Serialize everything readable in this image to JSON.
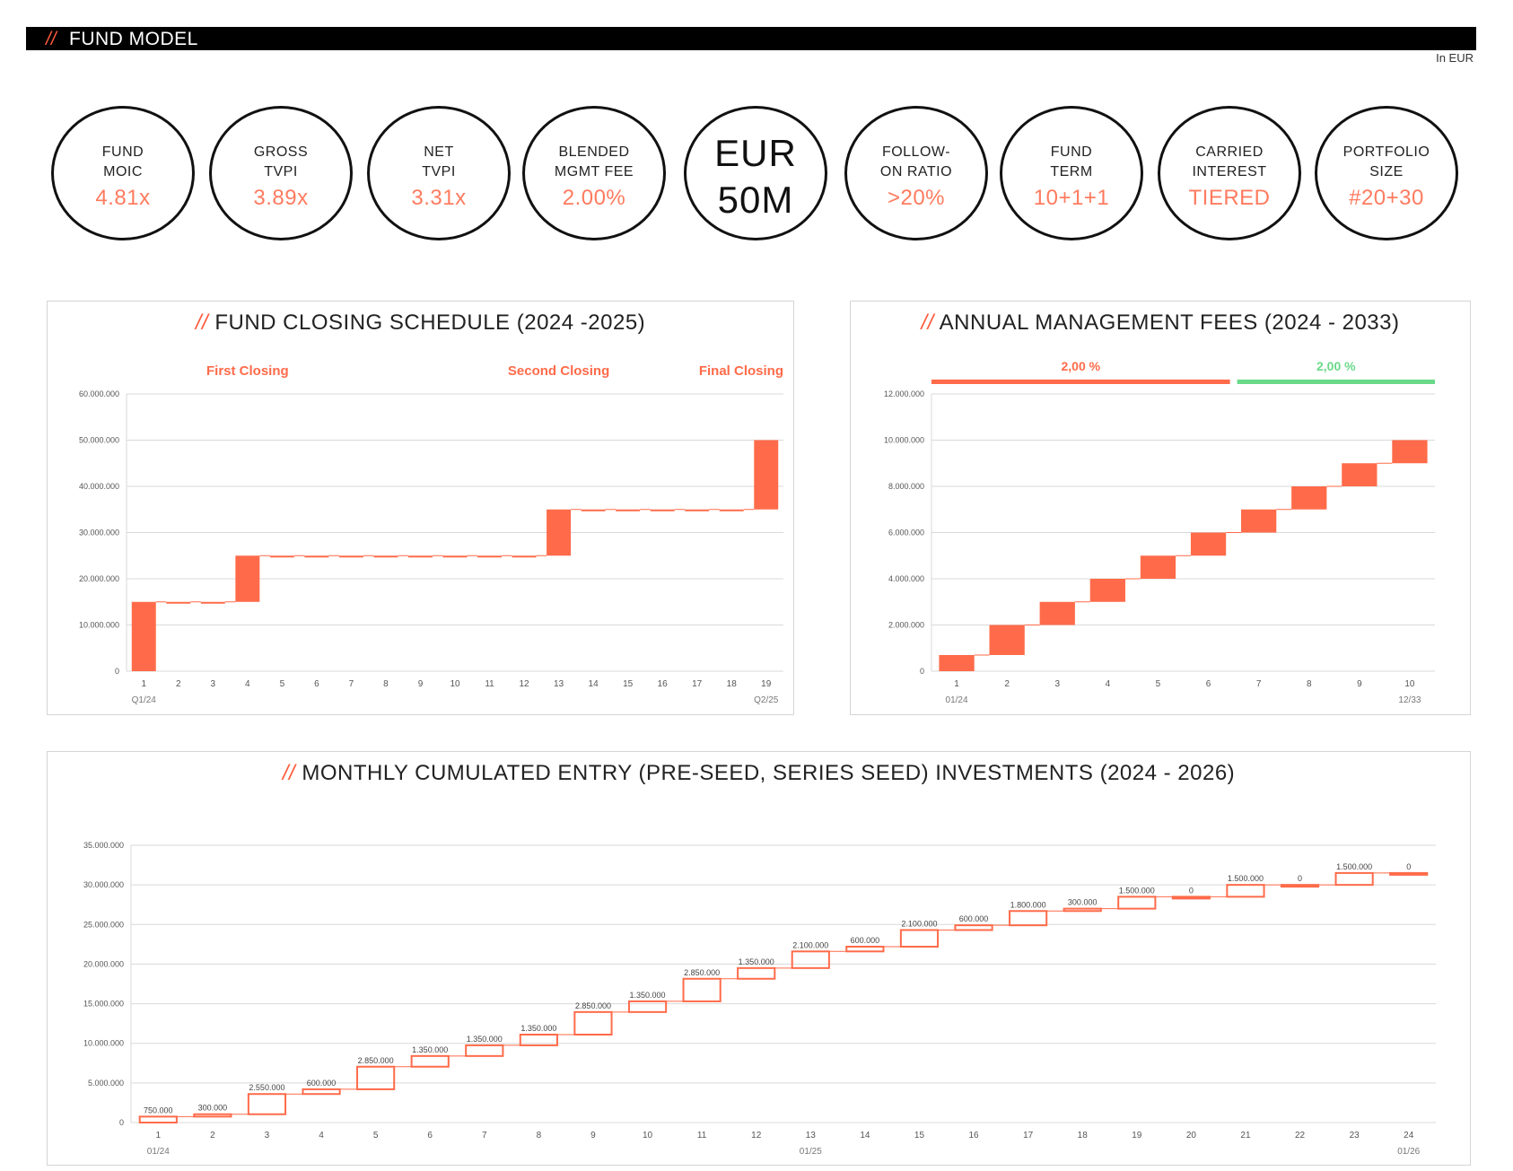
{
  "header": {
    "slash": "//",
    "title": "FUND MODEL",
    "unit": "In EUR"
  },
  "kpis": [
    {
      "label1": "FUND",
      "label2": "MOIC",
      "value": "4.81x"
    },
    {
      "label1": "GROSS",
      "label2": "TVPI",
      "value": "3.89x"
    },
    {
      "label1": "NET",
      "label2": "TVPI",
      "value": "3.31x"
    },
    {
      "label1": "BLENDED",
      "label2": "MGMT FEE",
      "value": "2.00%"
    },
    {
      "label1": "EUR",
      "label2": "50M",
      "value": ""
    },
    {
      "label1": "FOLLOW-",
      "label2": "ON RATIO",
      "value": ">20%"
    },
    {
      "label1": "FUND",
      "label2": "TERM",
      "value": "10+1+1"
    },
    {
      "label1": "CARRIED",
      "label2": "INTEREST",
      "value": "TIERED"
    },
    {
      "label1": "PORTFOLIO",
      "label2": "SIZE",
      "value": "#20+30"
    }
  ],
  "colors": {
    "accent": "#ff6b4a",
    "green": "#6ad98a",
    "grid": "#d9d9d9"
  },
  "chart_data": [
    {
      "type": "waterfall",
      "title_slash": "//",
      "title": "FUND CLOSING SCHEDULE (2024 -2025)",
      "annotations": [
        {
          "text": "First Closing",
          "at": 4
        },
        {
          "text": "Second Closing",
          "at": 13
        },
        {
          "text": "Final Closing",
          "at": 19
        }
      ],
      "categories": [
        "1",
        "2",
        "3",
        "4",
        "5",
        "6",
        "7",
        "8",
        "9",
        "10",
        "11",
        "12",
        "13",
        "14",
        "15",
        "16",
        "17",
        "18",
        "19"
      ],
      "increments": [
        15000000,
        0,
        0,
        10000000,
        0,
        0,
        0,
        0,
        0,
        0,
        0,
        0,
        10000000,
        0,
        0,
        0,
        0,
        0,
        15000000
      ],
      "ylim": [
        0,
        60000000
      ],
      "yticks": [
        "0",
        "10.000.000",
        "20.000.000",
        "30.000.000",
        "40.000.000",
        "50.000.000",
        "60.000.000"
      ],
      "subticks": [
        {
          "text": "Q1/24",
          "at": 1
        },
        {
          "text": "Q2/25",
          "at": 19
        }
      ]
    },
    {
      "type": "waterfall",
      "title_slash": "//",
      "title": "ANNUAL MANAGEMENT FEES (2024 - 2033)",
      "bands": [
        {
          "text": "2,00 %",
          "from": 1,
          "to": 6,
          "color": "#ff6b4a"
        },
        {
          "text": "2,00 %",
          "from": 6,
          "to": 10,
          "color": "#6ad98a"
        }
      ],
      "categories": [
        "1",
        "2",
        "3",
        "4",
        "5",
        "6",
        "7",
        "8",
        "9",
        "10"
      ],
      "increments": [
        700000,
        1300000,
        1000000,
        1000000,
        1000000,
        1000000,
        1000000,
        1000000,
        1000000,
        1000000
      ],
      "ylim": [
        0,
        12000000
      ],
      "yticks": [
        "0",
        "2.000.000",
        "4.000.000",
        "6.000.000",
        "8.000.000",
        "10.000.000",
        "12.000.000"
      ],
      "subticks": [
        {
          "text": "01/24",
          "at": 1
        },
        {
          "text": "12/33",
          "at": 10
        }
      ]
    },
    {
      "type": "waterfall",
      "title_slash": "//",
      "title": "MONTHLY CUMULATED ENTRY (PRE-SEED, SERIES SEED) INVESTMENTS (2024 - 2026)",
      "categories": [
        "1",
        "2",
        "3",
        "4",
        "5",
        "6",
        "7",
        "8",
        "9",
        "10",
        "11",
        "12",
        "13",
        "14",
        "15",
        "16",
        "17",
        "18",
        "19",
        "20",
        "21",
        "22",
        "23",
        "24"
      ],
      "increments": [
        750000,
        300000,
        2550000,
        600000,
        2850000,
        1350000,
        1350000,
        1350000,
        2850000,
        1350000,
        2850000,
        1350000,
        2100000,
        600000,
        2100000,
        600000,
        1800000,
        300000,
        1500000,
        0,
        1500000,
        0,
        1500000,
        0
      ],
      "labels": [
        "750.000",
        "300.000",
        "2.550.000",
        "600.000",
        "2.850.000",
        "1.350.000",
        "1.350.000",
        "1.350.000",
        "2.850.000",
        "1.350.000",
        "2.850.000",
        "1.350.000",
        "2.100.000",
        "600.000",
        "2.100.000",
        "600.000",
        "1.800.000",
        "300.000",
        "1.500.000",
        "0",
        "1.500.000",
        "0",
        "1.500.000",
        "0"
      ],
      "ylim": [
        0,
        35000000
      ],
      "yticks": [
        "0",
        "5.000.000",
        "10.000.000",
        "15.000.000",
        "20.000.000",
        "25.000.000",
        "30.000.000",
        "35.000.000"
      ],
      "subticks": [
        {
          "text": "01/24",
          "at": 1
        },
        {
          "text": "01/25",
          "at": 13
        },
        {
          "text": "01/26",
          "at": 24
        }
      ]
    }
  ]
}
